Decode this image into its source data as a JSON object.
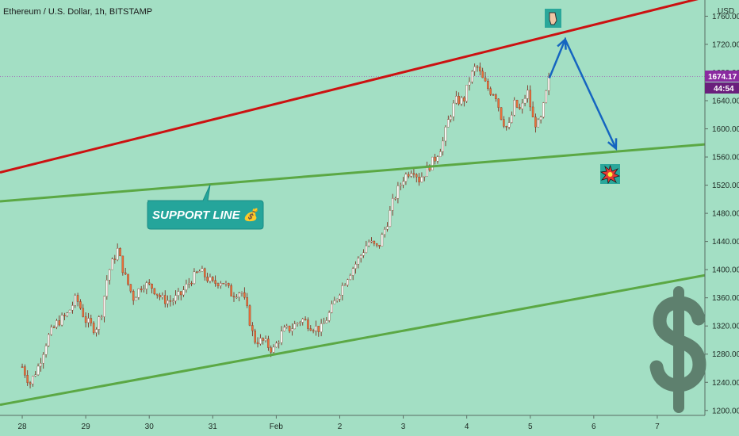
{
  "chart_data": {
    "type": "candlestick",
    "title": "Ethereum / U.S. Dollar, 1h, BITSTAMP",
    "currency": "USD",
    "x_ticks": [
      "28",
      "29",
      "30",
      "31",
      "Feb",
      "2",
      "3",
      "4",
      "5",
      "6",
      "7"
    ],
    "y_ticks": [
      1200,
      1240,
      1280,
      1320,
      1360,
      1400,
      1440,
      1480,
      1520,
      1560,
      1600,
      1640,
      1680,
      1720,
      1760
    ],
    "y_tick_labels": [
      "1200.00",
      "1240.00",
      "1280.00",
      "1320.00",
      "1360.00",
      "1400.00",
      "1440.00",
      "1480.00",
      "1520.00",
      "1560.00",
      "1600.00",
      "1640.00",
      "1680.00",
      "1720.00",
      "1760.00"
    ],
    "ylim": [
      1193,
      1783
    ],
    "xlim": [
      -0.35,
      10.75
    ],
    "last_price": "1674.17",
    "countdown": "44:54",
    "grid": false,
    "up_color": "#ffffff",
    "down_color": "#e8703a",
    "wick_color": "#7a1f10",
    "key_points": [
      [
        0,
        1262
      ],
      [
        0.12,
        1238
      ],
      [
        0.25,
        1262
      ],
      [
        0.4,
        1303
      ],
      [
        0.55,
        1325
      ],
      [
        0.7,
        1335
      ],
      [
        0.85,
        1360
      ],
      [
        1.0,
        1328
      ],
      [
        1.15,
        1315
      ],
      [
        1.25,
        1340
      ],
      [
        1.35,
        1395
      ],
      [
        1.5,
        1428
      ],
      [
        1.62,
        1390
      ],
      [
        1.75,
        1360
      ],
      [
        1.9,
        1380
      ],
      [
        2.05,
        1375
      ],
      [
        2.2,
        1358
      ],
      [
        2.35,
        1355
      ],
      [
        2.5,
        1365
      ],
      [
        2.65,
        1385
      ],
      [
        2.8,
        1398
      ],
      [
        3.0,
        1380
      ],
      [
        3.15,
        1385
      ],
      [
        3.3,
        1365
      ],
      [
        3.45,
        1370
      ],
      [
        3.55,
        1340
      ],
      [
        3.65,
        1300
      ],
      [
        3.8,
        1298
      ],
      [
        3.95,
        1285
      ],
      [
        4.1,
        1312
      ],
      [
        4.25,
        1318
      ],
      [
        4.4,
        1330
      ],
      [
        4.55,
        1320
      ],
      [
        4.7,
        1315
      ],
      [
        4.85,
        1340
      ],
      [
        5.0,
        1370
      ],
      [
        5.15,
        1395
      ],
      [
        5.3,
        1415
      ],
      [
        5.45,
        1440
      ],
      [
        5.6,
        1430
      ],
      [
        5.75,
        1468
      ],
      [
        5.85,
        1500
      ],
      [
        6.0,
        1530
      ],
      [
        6.15,
        1545
      ],
      [
        6.25,
        1528
      ],
      [
        6.35,
        1540
      ],
      [
        6.5,
        1558
      ],
      [
        6.62,
        1580
      ],
      [
        6.72,
        1615
      ],
      [
        6.82,
        1640
      ],
      [
        6.95,
        1640
      ],
      [
        7.05,
        1672
      ],
      [
        7.15,
        1690
      ],
      [
        7.25,
        1670
      ],
      [
        7.35,
        1655
      ],
      [
        7.45,
        1650
      ],
      [
        7.55,
        1615
      ],
      [
        7.65,
        1598
      ],
      [
        7.75,
        1635
      ],
      [
        7.85,
        1625
      ],
      [
        7.95,
        1655
      ],
      [
        8.05,
        1610
      ],
      [
        8.15,
        1605
      ],
      [
        8.25,
        1650
      ],
      [
        8.3,
        1672
      ]
    ],
    "lines": [
      {
        "name": "resistance",
        "color": "#cc1111",
        "points": [
          [
            -0.35,
            1538
          ],
          [
            10.75,
            1787
          ]
        ]
      },
      {
        "name": "support",
        "color": "#5ba844",
        "points": [
          [
            -0.35,
            1497
          ],
          [
            10.75,
            1578
          ]
        ]
      },
      {
        "name": "lower-channel",
        "color": "#5ba844",
        "points": [
          [
            -0.35,
            1208
          ],
          [
            10.75,
            1392
          ]
        ]
      }
    ],
    "projection": {
      "color": "#1565c0",
      "points": [
        [
          8.3,
          1672
        ],
        [
          8.55,
          1727
        ],
        [
          9.35,
          1572
        ]
      ]
    },
    "annotation": "SUPPORT LINE 💰"
  }
}
